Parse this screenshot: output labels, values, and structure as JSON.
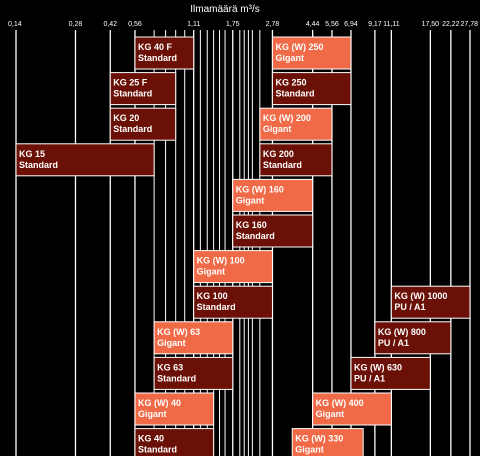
{
  "chart_data": {
    "type": "bar",
    "title": "Ilmamäärä m³/s",
    "x_scale": "log",
    "xlim": [
      0.14,
      27.78
    ],
    "x_ticks": [
      {
        "value": 0.14,
        "label": "0,14"
      },
      {
        "value": 0.28,
        "label": "0,28"
      },
      {
        "value": 0.42,
        "label": "0,42"
      },
      {
        "value": 0.56,
        "label": "0,56"
      },
      {
        "value": 1.11,
        "label": "1,11"
      },
      {
        "value": 1.75,
        "label": "1,75"
      },
      {
        "value": 2.78,
        "label": "2,78"
      },
      {
        "value": 4.44,
        "label": "4,44"
      },
      {
        "value": 5.56,
        "label": "5,56"
      },
      {
        "value": 6.94,
        "label": "6,94"
      },
      {
        "value": 9.17,
        "label": "9,17"
      },
      {
        "value": 11.11,
        "label": "11,11"
      },
      {
        "value": 17.5,
        "label": "17,50"
      },
      {
        "value": 22.22,
        "label": "22,22"
      },
      {
        "value": 27.78,
        "label": "27,78"
      }
    ],
    "minor_gridlines": [
      0.7,
      0.8,
      0.9,
      1.0,
      1.2,
      1.3,
      1.4,
      1.5,
      1.6,
      1.9,
      2.0,
      2.1,
      2.2,
      2.4
    ],
    "grid": true,
    "legend": "none",
    "bars": [
      {
        "line1": "KG 40 F",
        "line2": "Standard",
        "start": 0.56,
        "end": 1.11,
        "col": "left",
        "row": 0,
        "variant": "standard"
      },
      {
        "line1": "KG (W) 250",
        "line2": "Gigant",
        "start": 2.78,
        "end": 6.94,
        "col": "right",
        "row": 0,
        "variant": "gigant"
      },
      {
        "line1": "KG 25 F",
        "line2": "Standard",
        "start": 0.42,
        "end": 0.9,
        "col": "left",
        "row": 1,
        "variant": "standard"
      },
      {
        "line1": "KG 250",
        "line2": "Standard",
        "start": 2.78,
        "end": 6.94,
        "col": "right",
        "row": 1,
        "variant": "standard"
      },
      {
        "line1": "KG 20",
        "line2": "Standard",
        "start": 0.42,
        "end": 0.9,
        "col": "left",
        "row": 2,
        "variant": "standard"
      },
      {
        "line1": "KG (W) 200",
        "line2": "Gigant",
        "start": 2.4,
        "end": 5.56,
        "col": "right",
        "row": 2,
        "variant": "gigant"
      },
      {
        "line1": "KG 15",
        "line2": "Standard",
        "start": 0.14,
        "end": 0.7,
        "col": "left",
        "row": 3,
        "variant": "standard"
      },
      {
        "line1": "KG 200",
        "line2": "Standard",
        "start": 2.4,
        "end": 5.56,
        "col": "right",
        "row": 3,
        "variant": "standard"
      },
      {
        "line1": "KG (W) 160",
        "line2": "Gigant",
        "start": 1.75,
        "end": 4.44,
        "col": "right",
        "row": 4,
        "variant": "gigant"
      },
      {
        "line1": "KG 160",
        "line2": "Standard",
        "start": 1.75,
        "end": 4.44,
        "col": "right",
        "row": 5,
        "variant": "standard"
      },
      {
        "line1": "KG (W) 100",
        "line2": "Gigant",
        "start": 1.11,
        "end": 2.78,
        "col": "right",
        "row": 6,
        "variant": "gigant"
      },
      {
        "line1": "KG (W) 1000",
        "line2": "PU / A1",
        "start": 11.11,
        "end": 27.78,
        "col": "right",
        "row": 7,
        "variant": "standard"
      },
      {
        "line1": "KG 100",
        "line2": "Standard",
        "start": 1.11,
        "end": 2.78,
        "col": "right",
        "row": 7,
        "variant": "standard"
      },
      {
        "line1": "KG (W) 63",
        "line2": "Gigant",
        "start": 0.7,
        "end": 1.75,
        "col": "right",
        "row": 8,
        "variant": "gigant"
      },
      {
        "line1": "KG (W) 800",
        "line2": "PU / A1",
        "start": 9.17,
        "end": 22.22,
        "col": "right",
        "row": 8,
        "variant": "standard"
      },
      {
        "line1": "KG 63",
        "line2": "Standard",
        "start": 0.7,
        "end": 1.75,
        "col": "right",
        "row": 9,
        "variant": "standard"
      },
      {
        "line1": "KG (W) 630",
        "line2": "PU / A1",
        "start": 6.94,
        "end": 17.5,
        "col": "right",
        "row": 9,
        "variant": "standard"
      },
      {
        "line1": "KG (W) 40",
        "line2": "Gigant",
        "start": 0.56,
        "end": 1.4,
        "col": "right",
        "row": 10,
        "variant": "gigant"
      },
      {
        "line1": "KG (W) 400",
        "line2": "Gigant",
        "start": 4.44,
        "end": 11.11,
        "col": "right",
        "row": 10,
        "variant": "gigant"
      },
      {
        "line1": "KG 40",
        "line2": "Standard",
        "start": 0.56,
        "end": 1.4,
        "col": "right",
        "row": 11,
        "variant": "standard"
      },
      {
        "line1": "KG (W) 330",
        "line2": "Gigant",
        "start": 3.5,
        "end": 8.0,
        "col": "right",
        "row": 11,
        "variant": "gigant"
      }
    ],
    "colors": {
      "background": "#000000",
      "grid": "#ffffff",
      "text": "#ffffff",
      "standard_fill": "#6b1006",
      "gigant_fill": "#f06a47",
      "bar_border": "#ffffff"
    }
  }
}
